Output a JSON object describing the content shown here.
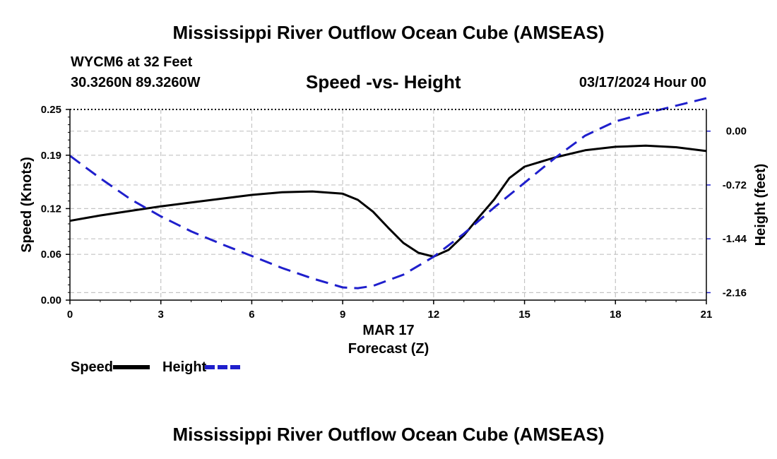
{
  "header": {
    "title": "Mississippi River Outflow Ocean Cube (AMSEAS)",
    "station": "WYCM6 at 32 Feet",
    "coordinates": "30.3260N  89.3260W",
    "subtitle": "Speed -vs- Height",
    "datetime": "03/17/2024 Hour 00"
  },
  "footer": {
    "title": "Mississippi River Outflow Ocean Cube (AMSEAS)"
  },
  "chart_data": {
    "type": "line",
    "title": "Speed -vs- Height",
    "xlabel": "Forecast (Z)",
    "xlabel_date": "MAR 17",
    "ylabel_left": "Speed (Knots)",
    "ylabel_right": "Height (feet)",
    "xlim": [
      0,
      21
    ],
    "ylim_left": [
      0,
      0.25
    ],
    "ylim_right": [
      -2.26,
      0.29
    ],
    "x_ticks": [
      0,
      3,
      6,
      9,
      12,
      15,
      18,
      21
    ],
    "x_tick_labels": [
      "0",
      "3",
      "6",
      "9",
      "12",
      "15",
      "18",
      "21"
    ],
    "left_ticks": [
      0.0,
      0.06,
      0.12,
      0.19,
      0.25
    ],
    "left_tick_labels": [
      "0.00",
      "0.06",
      "0.12",
      "0.19",
      "0.25"
    ],
    "right_ticks": [
      0.0,
      -0.72,
      -1.44,
      -2.16
    ],
    "right_tick_labels": [
      "0.00",
      "-0.72",
      "-1.44",
      "-2.16"
    ],
    "grid": true,
    "legend_position": "bottom-left",
    "series": [
      {
        "name": "Speed",
        "axis": "left",
        "color": "#000000",
        "style": "solid",
        "x": [
          0,
          1,
          2,
          3,
          4,
          5,
          6,
          7,
          8,
          9,
          9.5,
          10,
          10.5,
          11,
          11.5,
          12,
          12.5,
          13,
          13.5,
          14,
          14.5,
          15,
          16,
          17,
          18,
          19,
          20,
          21
        ],
        "values": [
          0.104,
          0.111,
          0.117,
          0.123,
          0.128,
          0.133,
          0.138,
          0.1415,
          0.1425,
          0.1395,
          0.1315,
          0.116,
          0.095,
          0.075,
          0.062,
          0.057,
          0.066,
          0.085,
          0.109,
          0.132,
          0.16,
          0.175,
          0.187,
          0.1965,
          0.201,
          0.2025,
          0.2005,
          0.1955
        ]
      },
      {
        "name": "Height",
        "axis": "right",
        "color": "#1f1fcc",
        "style": "dashed",
        "x": [
          0,
          1,
          2,
          3,
          4,
          5,
          6,
          7,
          8,
          9,
          9.5,
          10,
          11,
          12,
          13,
          14,
          15,
          16,
          17,
          18,
          19,
          20,
          21
        ],
        "values": [
          -0.33,
          -0.63,
          -0.91,
          -1.14,
          -1.34,
          -1.51,
          -1.67,
          -1.83,
          -1.97,
          -2.09,
          -2.1,
          -2.07,
          -1.92,
          -1.68,
          -1.37,
          -1.02,
          -0.69,
          -0.36,
          -0.06,
          0.13,
          0.24,
          0.34,
          0.44
        ]
      }
    ]
  }
}
